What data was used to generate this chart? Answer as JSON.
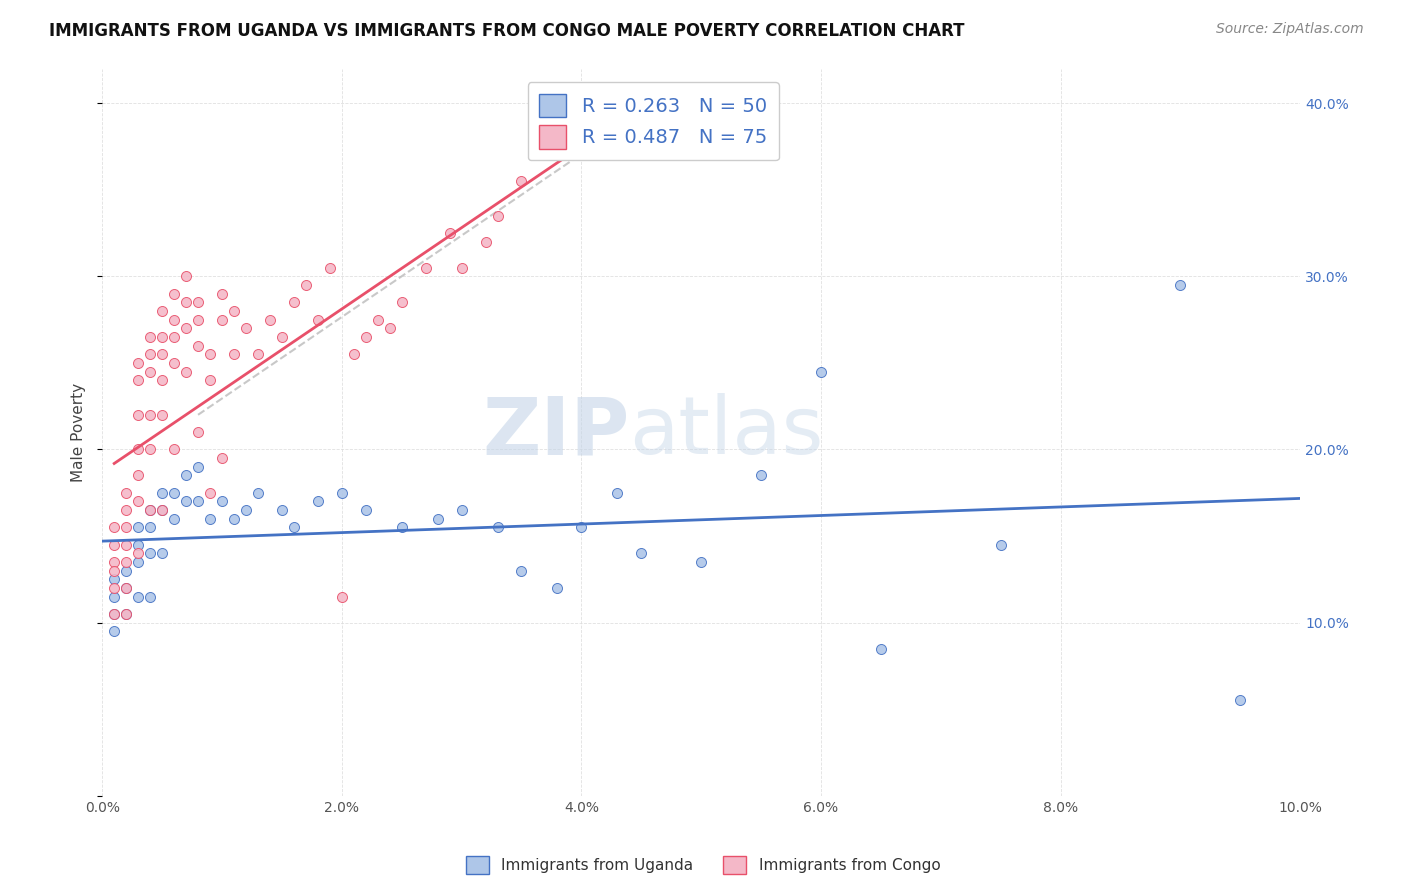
{
  "title": "IMMIGRANTS FROM UGANDA VS IMMIGRANTS FROM CONGO MALE POVERTY CORRELATION CHART",
  "source": "Source: ZipAtlas.com",
  "ylabel": "Male Poverty",
  "xlim": [
    0.0,
    0.1
  ],
  "ylim": [
    0.0,
    0.42
  ],
  "x_ticks": [
    0.0,
    0.02,
    0.04,
    0.06,
    0.08,
    0.1
  ],
  "y_ticks": [
    0.0,
    0.1,
    0.2,
    0.3,
    0.4
  ],
  "x_tick_labels": [
    "0.0%",
    "2.0%",
    "4.0%",
    "6.0%",
    "8.0%",
    "10.0%"
  ],
  "y_tick_labels": [
    "",
    "10.0%",
    "20.0%",
    "30.0%",
    "40.0%"
  ],
  "legend_r1": "R = 0.263",
  "legend_n1": "N = 50",
  "legend_r2": "R = 0.487",
  "legend_n2": "N = 75",
  "legend_label1": "Immigrants from Uganda",
  "legend_label2": "Immigrants from Congo",
  "color_uganda": "#aec6e8",
  "color_congo": "#f4b8c8",
  "color_line_uganda": "#4472c4",
  "color_line_congo": "#e8506a",
  "watermark_zip": "ZIP",
  "watermark_atlas": "atlas",
  "title_fontsize": 12,
  "source_fontsize": 10,
  "axis_label_fontsize": 11,
  "tick_fontsize": 10,
  "uganda_x": [
    0.001,
    0.001,
    0.001,
    0.001,
    0.002,
    0.002,
    0.002,
    0.003,
    0.003,
    0.003,
    0.003,
    0.004,
    0.004,
    0.004,
    0.004,
    0.005,
    0.005,
    0.005,
    0.006,
    0.006,
    0.007,
    0.007,
    0.008,
    0.008,
    0.009,
    0.01,
    0.011,
    0.012,
    0.013,
    0.015,
    0.016,
    0.018,
    0.02,
    0.022,
    0.025,
    0.028,
    0.03,
    0.033,
    0.035,
    0.038,
    0.04,
    0.043,
    0.045,
    0.05,
    0.055,
    0.06,
    0.065,
    0.075,
    0.09,
    0.095
  ],
  "uganda_y": [
    0.125,
    0.115,
    0.105,
    0.095,
    0.13,
    0.12,
    0.105,
    0.155,
    0.145,
    0.135,
    0.115,
    0.165,
    0.155,
    0.14,
    0.115,
    0.175,
    0.165,
    0.14,
    0.175,
    0.16,
    0.185,
    0.17,
    0.19,
    0.17,
    0.16,
    0.17,
    0.16,
    0.165,
    0.175,
    0.165,
    0.155,
    0.17,
    0.175,
    0.165,
    0.155,
    0.16,
    0.165,
    0.155,
    0.13,
    0.12,
    0.155,
    0.175,
    0.14,
    0.135,
    0.185,
    0.245,
    0.085,
    0.145,
    0.295,
    0.055
  ],
  "congo_x": [
    0.001,
    0.001,
    0.001,
    0.001,
    0.001,
    0.001,
    0.002,
    0.002,
    0.002,
    0.002,
    0.002,
    0.002,
    0.002,
    0.003,
    0.003,
    0.003,
    0.003,
    0.003,
    0.003,
    0.003,
    0.004,
    0.004,
    0.004,
    0.004,
    0.004,
    0.004,
    0.005,
    0.005,
    0.005,
    0.005,
    0.005,
    0.005,
    0.006,
    0.006,
    0.006,
    0.006,
    0.006,
    0.007,
    0.007,
    0.007,
    0.007,
    0.008,
    0.008,
    0.008,
    0.008,
    0.009,
    0.009,
    0.009,
    0.01,
    0.01,
    0.01,
    0.011,
    0.011,
    0.012,
    0.013,
    0.014,
    0.015,
    0.016,
    0.017,
    0.018,
    0.019,
    0.02,
    0.021,
    0.022,
    0.023,
    0.024,
    0.025,
    0.027,
    0.029,
    0.03,
    0.032,
    0.033,
    0.035,
    0.037,
    0.039
  ],
  "congo_y": [
    0.155,
    0.145,
    0.135,
    0.13,
    0.12,
    0.105,
    0.175,
    0.165,
    0.155,
    0.145,
    0.135,
    0.12,
    0.105,
    0.25,
    0.24,
    0.22,
    0.2,
    0.185,
    0.17,
    0.14,
    0.265,
    0.255,
    0.245,
    0.22,
    0.2,
    0.165,
    0.28,
    0.265,
    0.255,
    0.24,
    0.22,
    0.165,
    0.29,
    0.275,
    0.265,
    0.25,
    0.2,
    0.3,
    0.285,
    0.27,
    0.245,
    0.285,
    0.275,
    0.26,
    0.21,
    0.255,
    0.24,
    0.175,
    0.29,
    0.275,
    0.195,
    0.28,
    0.255,
    0.27,
    0.255,
    0.275,
    0.265,
    0.285,
    0.295,
    0.275,
    0.305,
    0.115,
    0.255,
    0.265,
    0.275,
    0.27,
    0.285,
    0.305,
    0.325,
    0.305,
    0.32,
    0.335,
    0.355,
    0.375,
    0.37
  ],
  "gray_line_x": [
    0.008,
    0.042
  ],
  "gray_line_y": [
    0.22,
    0.38
  ]
}
